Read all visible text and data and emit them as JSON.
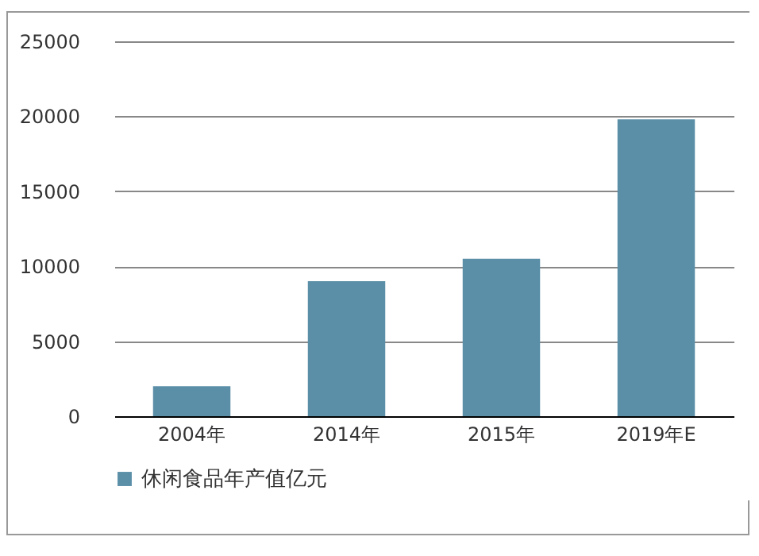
{
  "chart_data": {
    "type": "bar",
    "categories": [
      "2004年",
      "2014年",
      "2015年",
      "2019年E"
    ],
    "series": [
      {
        "name": "休闲食品年产值亿元",
        "color": "#5b8fa8",
        "values": [
          2000,
          9000,
          10500,
          19800
        ]
      }
    ],
    "ylim": [
      0,
      25000
    ],
    "yticks": [
      0,
      5000,
      10000,
      15000,
      20000,
      25000
    ],
    "grid": "y",
    "legend": "bottom"
  }
}
